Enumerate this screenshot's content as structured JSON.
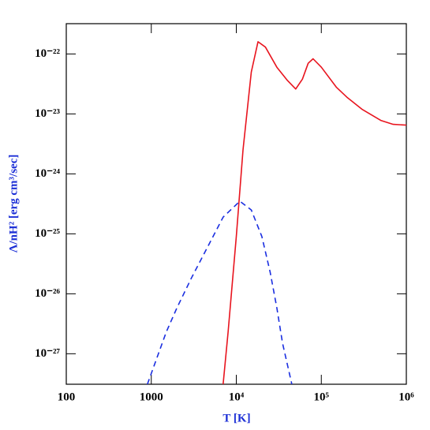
{
  "chart_data": {
    "type": "line",
    "xlabel": "T [K]",
    "ylabel": "Λ/nH² [erg cm³/sec]",
    "xscale": "log",
    "yscale": "log",
    "xlim": [
      100,
      1000000
    ],
    "ylim": [
      3.1e-28,
      3.2e-22
    ],
    "xticks": [
      100,
      1000,
      {
        "value": 10000,
        "label": "10⁴"
      },
      {
        "value": 100000,
        "label": "10⁵"
      },
      {
        "value": 1000000,
        "label": "10⁶"
      }
    ],
    "yticks": [
      {
        "value": 1e-27,
        "label": "10⁻²⁷"
      },
      {
        "value": 1e-26,
        "label": "10⁻²⁶"
      },
      {
        "value": 1e-25,
        "label": "10⁻²⁵"
      },
      {
        "value": 1e-24,
        "label": "10⁻²⁴"
      },
      {
        "value": 1e-23,
        "label": "10⁻²³"
      },
      {
        "value": 1e-22,
        "label": "10⁻²²"
      }
    ],
    "label_color": "#1c2fd6",
    "series": [
      {
        "color": "#e8141e",
        "linestyle": "solid",
        "x": [
          7000,
          8000,
          10000,
          12000,
          15000,
          18000,
          22000,
          30000,
          40000,
          50000,
          60000,
          70000,
          80000,
          100000,
          150000,
          200000,
          300000,
          500000,
          700000,
          1000000
        ],
        "values": [
          3.1e-28,
          2.3e-27,
          9e-26,
          2.5e-24,
          5e-23,
          1.6e-22,
          1.3e-22,
          6e-23,
          3.6e-23,
          2.6e-23,
          3.8e-23,
          7e-23,
          8.3e-23,
          6e-23,
          2.8e-23,
          1.9e-23,
          1.2e-23,
          7.8e-24,
          6.7e-24,
          6.5e-24
        ]
      },
      {
        "color": "#1a2ee0",
        "linestyle": "dashed",
        "x": [
          900,
          1500,
          2000,
          3000,
          5000,
          7000,
          11000,
          15000,
          20000,
          25000,
          30000,
          35000,
          45000
        ],
        "values": [
          3.1e-28,
          2.3e-27,
          5.8e-27,
          1.9e-26,
          7.6e-26,
          1.9e-25,
          3.5e-25,
          2.5e-25,
          9e-26,
          2.3e-26,
          5.8e-27,
          1.5e-27,
          3.1e-28
        ]
      }
    ]
  }
}
